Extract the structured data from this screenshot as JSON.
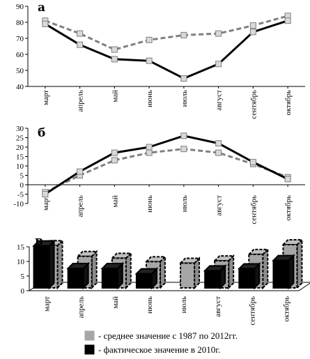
{
  "chart_data": [
    {
      "type": "line",
      "panel_label": "а",
      "categories": [
        "март",
        "апрель",
        "май",
        "июнь",
        "июль",
        "август",
        "сентябрь",
        "октябрь"
      ],
      "ylim": [
        40,
        90
      ],
      "yticks": [
        40,
        50,
        60,
        70,
        80,
        90
      ],
      "grid": false,
      "series": [
        {
          "key": "avg",
          "style": "dashed",
          "color": "#7f7f7f",
          "values": [
            81,
            73,
            63,
            69,
            72,
            73,
            78,
            84
          ]
        },
        {
          "key": "actual",
          "style": "solid",
          "color": "#000000",
          "values": [
            79,
            66,
            57,
            56,
            45,
            54,
            74,
            81
          ]
        }
      ]
    },
    {
      "type": "line",
      "panel_label": "б",
      "categories": [
        "март",
        "апрель",
        "май",
        "июнь",
        "июль",
        "август",
        "сентябрь",
        "октябрь"
      ],
      "ylim": [
        -10,
        30
      ],
      "yticks": [
        -10,
        -5,
        0,
        5,
        10,
        15,
        20,
        25,
        30
      ],
      "grid": false,
      "series": [
        {
          "key": "avg",
          "style": "dashed",
          "color": "#7f7f7f",
          "values": [
            -4,
            5,
            13,
            17,
            19,
            17,
            11,
            4
          ]
        },
        {
          "key": "actual",
          "style": "solid",
          "color": "#000000",
          "values": [
            -5,
            7,
            17,
            20,
            26,
            22,
            12,
            3
          ]
        }
      ]
    },
    {
      "type": "bar",
      "panel_label": "в",
      "categories": [
        "март",
        "апрель",
        "май",
        "июнь",
        "июль",
        "август",
        "сентябрь",
        "октябрь"
      ],
      "ylim": [
        0,
        15
      ],
      "yticks": [
        0,
        5,
        10,
        15
      ],
      "grid": false,
      "series": [
        {
          "key": "avg",
          "color": "#a6a6a6",
          "values": [
            13.7,
            10,
            9.4,
            8.2,
            7.7,
            8.5,
            10.7,
            14
          ]
        },
        {
          "key": "actual",
          "color": "#000000",
          "values": [
            13.6,
            5.9,
            5.9,
            4.1,
            0,
            5.1,
            5.8,
            8.6
          ]
        }
      ]
    }
  ],
  "legend": {
    "items": [
      {
        "label": "- среднее значение с 1987 по 2012гг.",
        "color": "#a6a6a6"
      },
      {
        "label": "- фактическое значение в 2010г.",
        "color": "#000000"
      }
    ]
  }
}
